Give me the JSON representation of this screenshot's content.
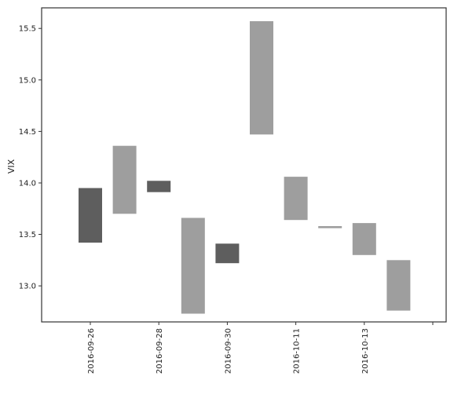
{
  "chart_data": {
    "type": "bar",
    "title": "",
    "xlabel": "",
    "ylabel": "VIX",
    "ylim": [
      12.65,
      15.7
    ],
    "yticks": [
      13.0,
      13.5,
      14.0,
      14.5,
      15.0,
      15.5
    ],
    "ytick_labels": [
      "13.0",
      "13.5",
      "14.0",
      "14.5",
      "15.0",
      "15.5"
    ],
    "xtick_labels": [
      "2016-09-26",
      "2016-09-28",
      "2016-09-30",
      "2016-10-11",
      "2016-10-13",
      ""
    ],
    "grid": false,
    "legend": "none",
    "colors": {
      "down": "#5e5e5e",
      "up": "#9e9e9e",
      "axis": "#333333"
    },
    "boxes": [
      {
        "low": 13.42,
        "high": 13.95,
        "direction": "down"
      },
      {
        "low": 13.7,
        "high": 14.36,
        "direction": "up"
      },
      {
        "low": 13.91,
        "high": 14.02,
        "direction": "down"
      },
      {
        "low": 12.73,
        "high": 13.66,
        "direction": "up"
      },
      {
        "low": 13.22,
        "high": 13.41,
        "direction": "down"
      },
      {
        "low": 14.47,
        "high": 15.57,
        "direction": "up"
      },
      {
        "low": 13.64,
        "high": 14.06,
        "direction": "up"
      },
      {
        "low": 13.56,
        "high": 13.58,
        "direction": "up"
      },
      {
        "low": 13.3,
        "high": 13.61,
        "direction": "up"
      },
      {
        "low": 12.76,
        "high": 13.25,
        "direction": "up"
      }
    ]
  }
}
